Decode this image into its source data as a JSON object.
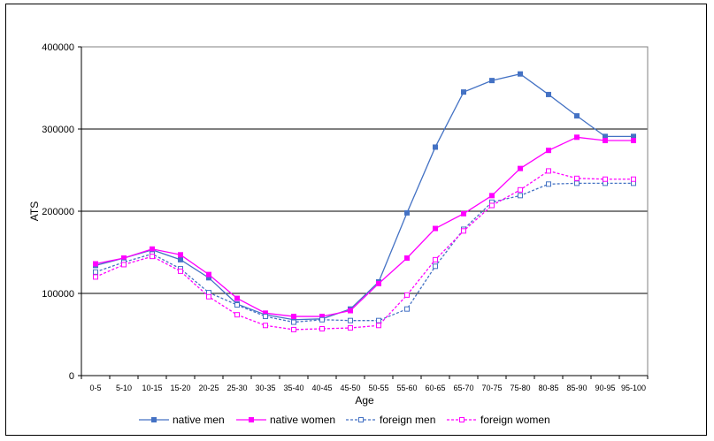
{
  "chart_data": {
    "type": "line",
    "xlabel": "Age",
    "ylabel": "ATS",
    "ylim": [
      0,
      400000
    ],
    "yticks": [
      0,
      100000,
      200000,
      300000,
      400000
    ],
    "y_tick_labels": [
      "0",
      "100000",
      "200000",
      "300000",
      "400000"
    ],
    "grid": "horizontal",
    "legend_position": "bottom",
    "categories": [
      "0-5",
      "5-10",
      "10-15",
      "15-20",
      "20-25",
      "25-30",
      "30-35",
      "35-40",
      "40-45",
      "45-50",
      "50-55",
      "55-60",
      "60-65",
      "65-70",
      "70-75",
      "75-80",
      "80-85",
      "85-90",
      "90-95",
      "95-100"
    ],
    "series": [
      {
        "name": "native men",
        "color": "#4472C4",
        "line": "solid",
        "marker": "filled-square",
        "values": [
          134000,
          143000,
          153000,
          141000,
          119000,
          87000,
          74000,
          68000,
          69000,
          81000,
          114000,
          198000,
          278000,
          345000,
          359000,
          367000,
          342000,
          316000,
          291000,
          291000
        ]
      },
      {
        "name": "native women",
        "color": "#FF00FF",
        "line": "solid",
        "marker": "filled-square",
        "values": [
          136000,
          143000,
          154000,
          147000,
          123000,
          94000,
          76000,
          72000,
          72000,
          79000,
          112000,
          143000,
          179000,
          197000,
          219000,
          252000,
          274000,
          290000,
          286000,
          286000
        ]
      },
      {
        "name": "foreign men",
        "color": "#4472C4",
        "line": "dashed",
        "marker": "hollow-square",
        "values": [
          126000,
          138000,
          148000,
          130000,
          101000,
          86000,
          72000,
          65000,
          68000,
          67000,
          67000,
          81000,
          133000,
          178000,
          211000,
          219000,
          233000,
          234000,
          234000,
          234000
        ]
      },
      {
        "name": "foreign women",
        "color": "#FF00FF",
        "line": "dashed",
        "marker": "hollow-square",
        "values": [
          120000,
          135000,
          145000,
          127000,
          96000,
          74000,
          61000,
          56000,
          57000,
          58000,
          61000,
          98000,
          141000,
          176000,
          207000,
          226000,
          249000,
          240000,
          239000,
          239000
        ]
      }
    ]
  }
}
